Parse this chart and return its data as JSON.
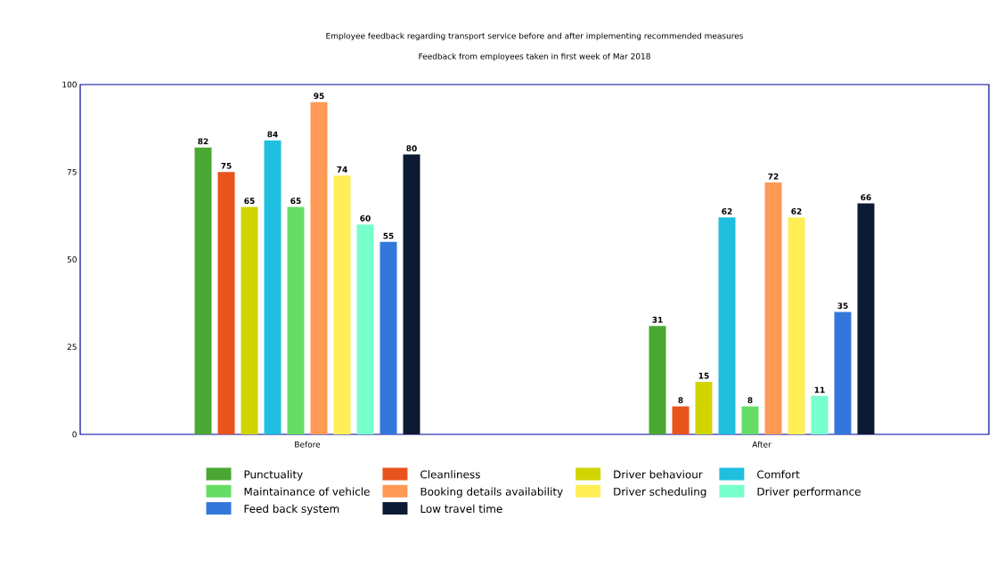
{
  "chart_data": {
    "type": "bar",
    "title": "Employee feedback regarding transport service before and after implementing recommended measures",
    "subtitle": "Feedback from employees taken in first week of Mar 2018",
    "categories": [
      "Before",
      "After"
    ],
    "series": [
      {
        "name": "Punctuality",
        "color": "#4aa832",
        "values": [
          82,
          31
        ]
      },
      {
        "name": "Cleanliness",
        "color": "#e8541c",
        "values": [
          75,
          8
        ]
      },
      {
        "name": "Driver behaviour",
        "color": "#d2d400",
        "values": [
          65,
          15
        ]
      },
      {
        "name": "Comfort",
        "color": "#1fbfdf",
        "values": [
          84,
          62
        ]
      },
      {
        "name": "Maintainance of vehicle",
        "color": "#66dd66",
        "values": [
          65,
          8
        ]
      },
      {
        "name": "Booking details availability",
        "color": "#ff9955",
        "values": [
          95,
          72
        ]
      },
      {
        "name": "Driver scheduling",
        "color": "#ffee55",
        "values": [
          74,
          62
        ]
      },
      {
        "name": "Driver performance",
        "color": "#77ffcc",
        "values": [
          60,
          11
        ]
      },
      {
        "name": "Feed back system",
        "color": "#3377dd",
        "values": [
          55,
          35
        ]
      },
      {
        "name": "Low travel time",
        "color": "#0c1a33",
        "values": [
          80,
          66
        ]
      }
    ],
    "ylim": [
      0,
      100
    ],
    "yticks": [
      0,
      25,
      50,
      75,
      100
    ],
    "data_labels": true,
    "legend": "bottom"
  }
}
